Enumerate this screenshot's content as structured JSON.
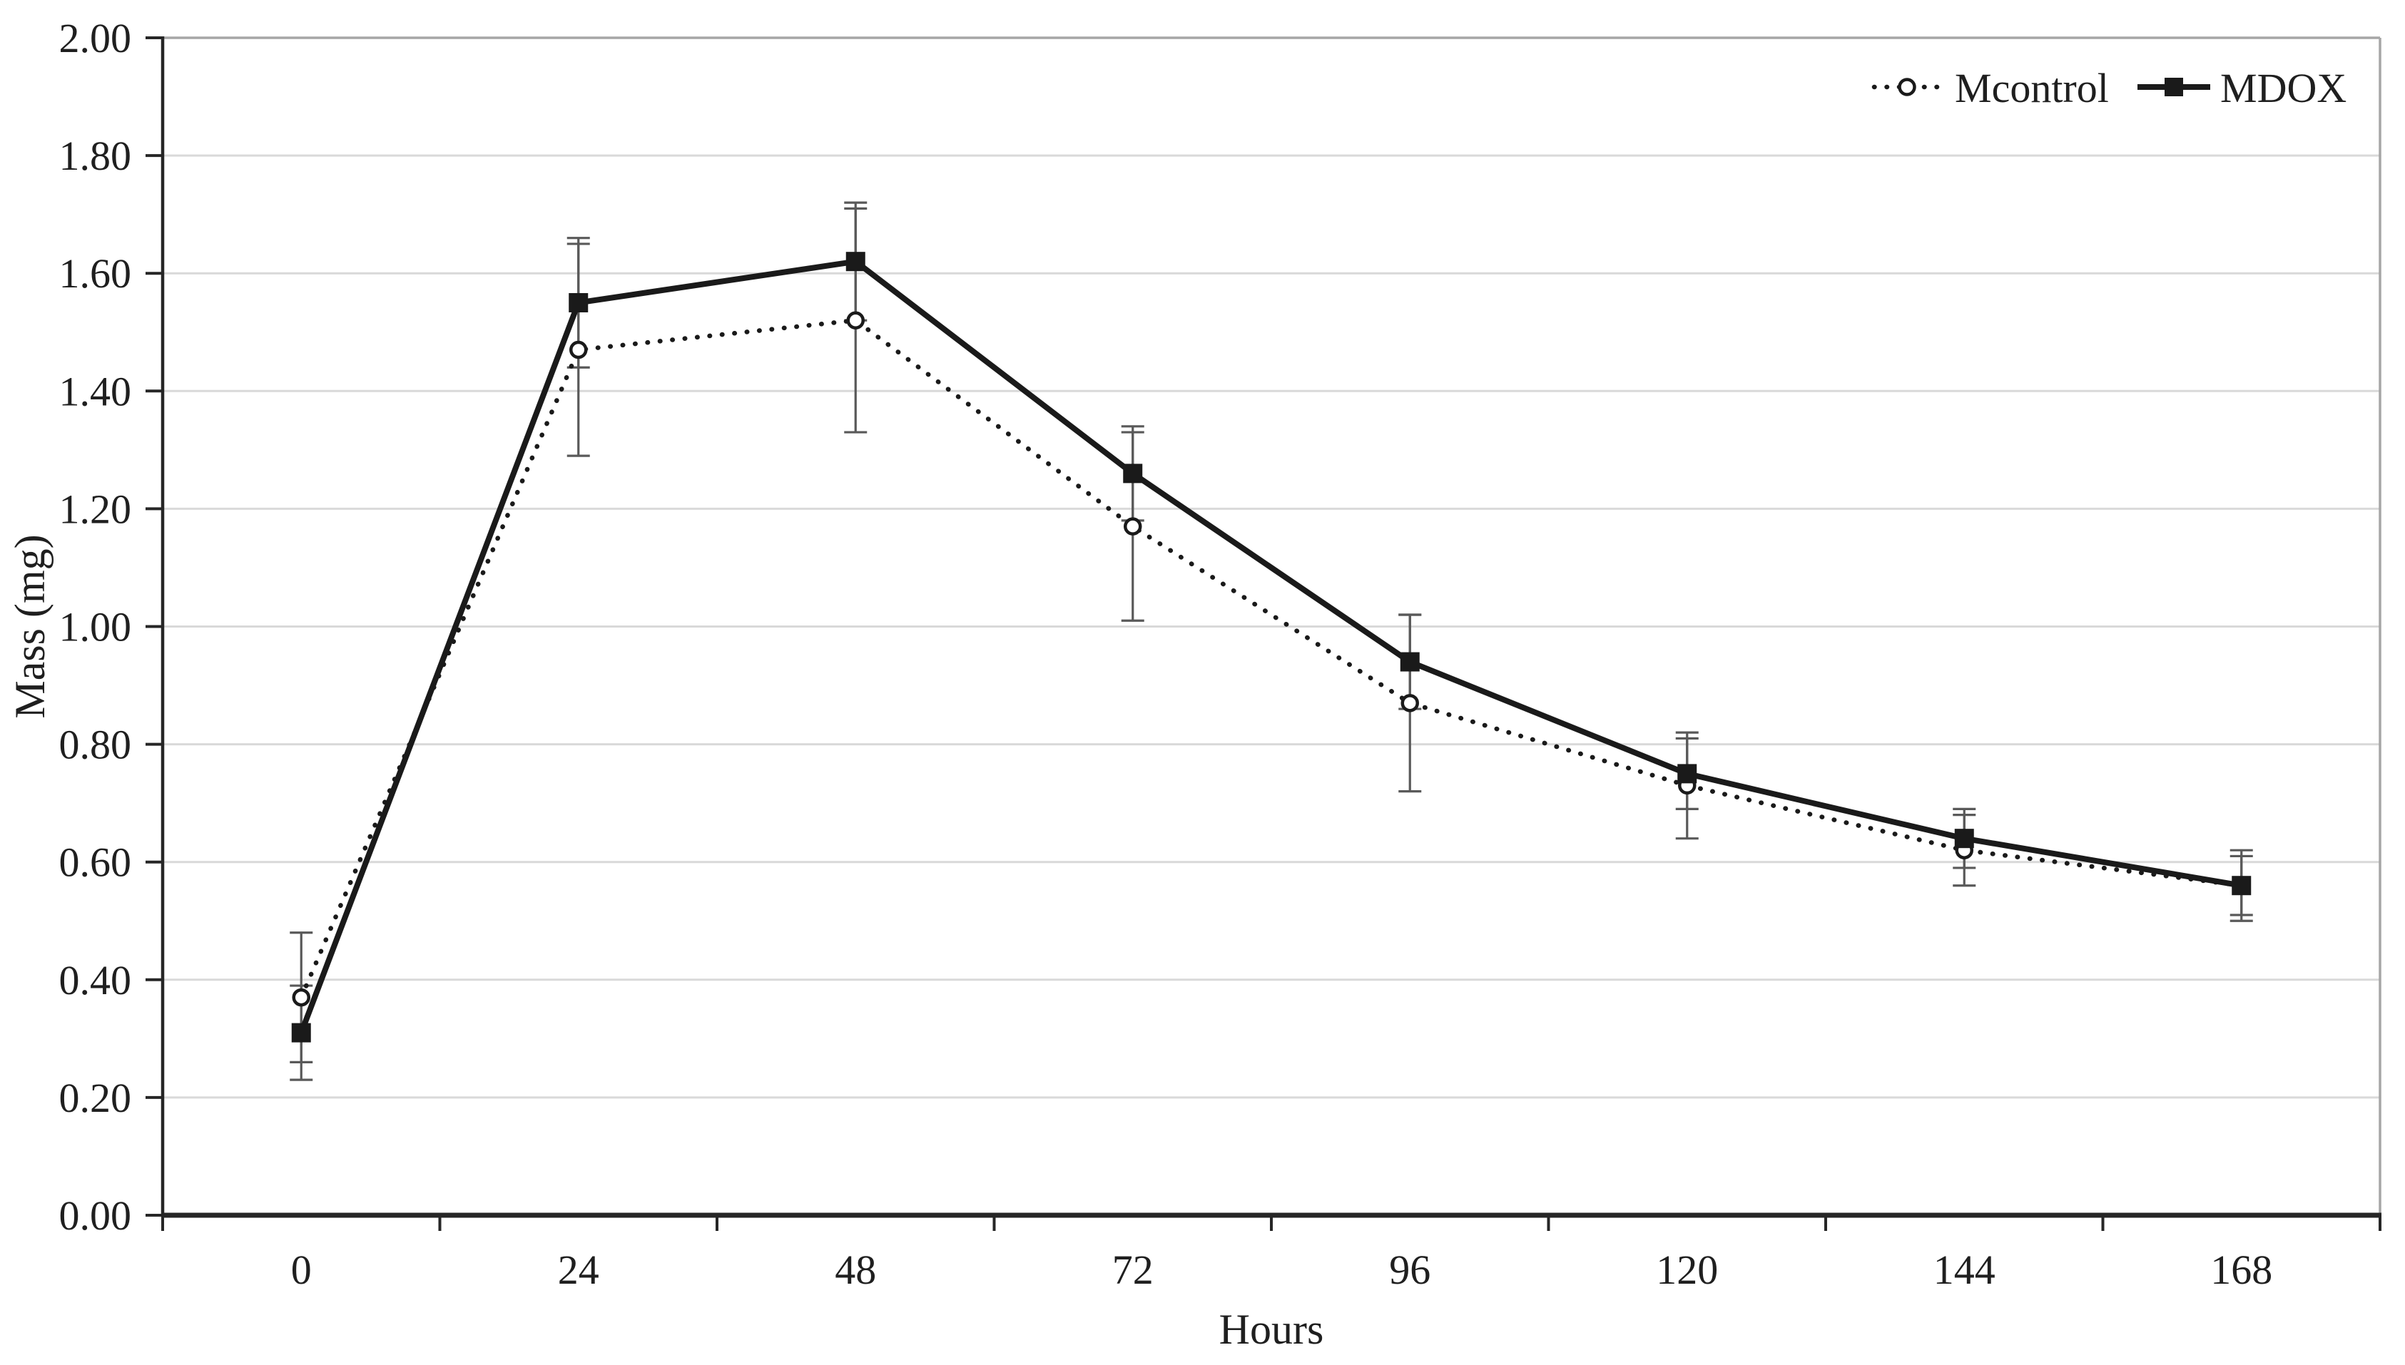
{
  "chart_data": {
    "type": "line",
    "title": "",
    "xlabel": "Hours",
    "ylabel": "Mass (mg)",
    "categories": [
      0,
      24,
      48,
      72,
      96,
      120,
      144,
      168
    ],
    "x_tick_labels": [
      "0",
      "24",
      "48",
      "72",
      "96",
      "120",
      "144",
      "168"
    ],
    "y_tick_labels": [
      "0.00",
      "0.20",
      "0.40",
      "0.60",
      "0.80",
      "1.00",
      "1.20",
      "1.40",
      "1.60",
      "1.80",
      "2.00"
    ],
    "ylim": [
      0.0,
      2.0
    ],
    "ytick_step": 0.2,
    "grid": {
      "horizontal": true,
      "vertical": false
    },
    "legend_position": "top-right-inside",
    "series": [
      {
        "name": "Mcontrol",
        "line_style": "dotted",
        "marker": "open-circle",
        "values": [
          0.37,
          1.47,
          1.52,
          1.17,
          0.87,
          0.73,
          0.62,
          0.56
        ],
        "error_bars": [
          0.11,
          0.18,
          0.19,
          0.16,
          0.15,
          0.09,
          0.06,
          0.05
        ]
      },
      {
        "name": "MDOX",
        "line_style": "solid",
        "marker": "filled-square",
        "values": [
          0.31,
          1.55,
          1.62,
          1.26,
          0.94,
          0.75,
          0.64,
          0.56
        ],
        "error_bars": [
          0.08,
          0.11,
          0.1,
          0.08,
          0.08,
          0.06,
          0.05,
          0.06
        ]
      }
    ],
    "colors": {
      "series": "#1a1a1a",
      "grid": "#d9d9d9",
      "frame": "#a6a6a6",
      "axis": "#262626",
      "error_bar": "#595959",
      "text": "#1f1f1f",
      "background": "#ffffff"
    }
  }
}
